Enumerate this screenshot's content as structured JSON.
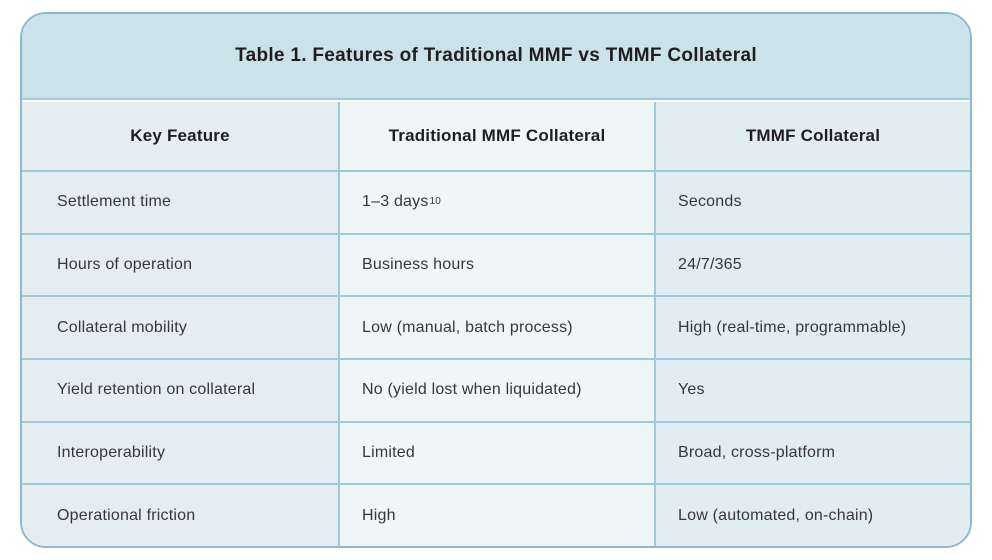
{
  "table": {
    "title": "Table 1. Features of Traditional MMF vs TMMF Collateral",
    "columns": [
      "Key Feature",
      "Traditional MMF Collateral",
      "TMMF Collateral"
    ],
    "rows": [
      {
        "feature": "Settlement time",
        "traditional": "1–3 days",
        "traditional_sup": "10",
        "tmmf": "Seconds"
      },
      {
        "feature": "Hours of operation",
        "traditional": "Business hours",
        "tmmf": "24/7/365"
      },
      {
        "feature": "Collateral mobility",
        "traditional": "Low (manual, batch process)",
        "tmmf": "High (real-time, programmable)"
      },
      {
        "feature": "Yield retention on collateral",
        "traditional": "No (yield lost when liquidated)",
        "tmmf": "Yes"
      },
      {
        "feature": "Interoperability",
        "traditional": "Limited",
        "tmmf": "Broad, cross-platform"
      },
      {
        "feature": "Operational friction",
        "traditional": "High",
        "tmmf": "Low (automated, on-chain)"
      }
    ],
    "colors": {
      "outer_border": "#8db9cd",
      "grid_line": "#a0cadb",
      "title_background": "#cbe2ea",
      "key_feature_column_background": "#e4eef2",
      "traditional_column_background": "#eff6f8",
      "tmmf_column_background": "#e1edf2",
      "heading_text": "#1e1e20",
      "body_text": "#37373a"
    }
  },
  "chart_data": {
    "type": "table",
    "title": "Table 1. Features of Traditional MMF vs TMMF Collateral",
    "columns": [
      "Key Feature",
      "Traditional MMF Collateral",
      "TMMF Collateral"
    ],
    "rows": [
      [
        "Settlement time",
        "1–3 days¹⁰",
        "Seconds"
      ],
      [
        "Hours of operation",
        "Business hours",
        "24/7/365"
      ],
      [
        "Collateral mobility",
        "Low (manual, batch process)",
        "High (real-time, programmable)"
      ],
      [
        "Yield retention on collateral",
        "No (yield lost when liquidated)",
        "Yes"
      ],
      [
        "Interoperability",
        "Limited",
        "Broad, cross-platform"
      ],
      [
        "Operational friction",
        "High",
        "Low (automated, on-chain)"
      ]
    ]
  }
}
